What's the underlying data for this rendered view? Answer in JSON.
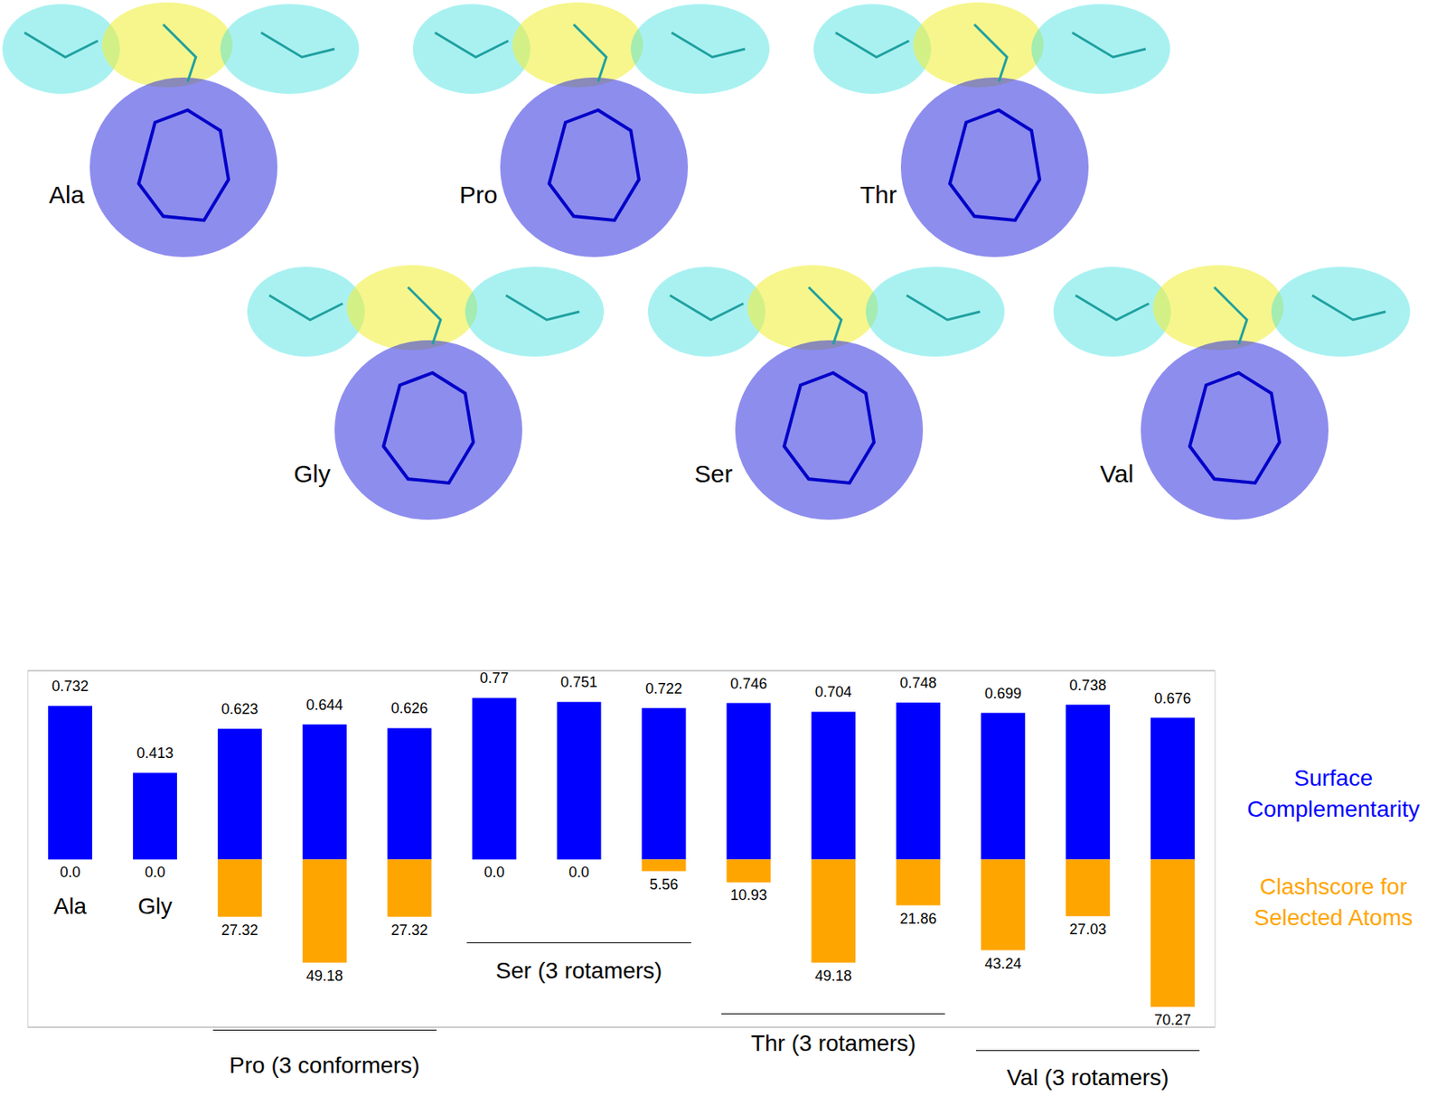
{
  "panel_labels": [
    "Ala",
    "Pro",
    "Thr",
    "Gly",
    "Ser",
    "Val"
  ],
  "chart_data": {
    "type": "bar",
    "categories": [
      "Ala",
      "Gly",
      null,
      null,
      null,
      null,
      null,
      null,
      null,
      null,
      null,
      null,
      null,
      null
    ],
    "groups": [
      {
        "label": "Pro (3 conformers)",
        "first": 2,
        "last": 4
      },
      {
        "label": "Ser (3 rotamers)",
        "first": 5,
        "last": 7
      },
      {
        "label": "Thr (3 rotamers)",
        "first": 8,
        "last": 10
      },
      {
        "label": "Val (3 rotamers)",
        "first": 11,
        "last": 13
      }
    ],
    "series": [
      {
        "name": "Surface Complementarity",
        "color": "#0000ff",
        "values": [
          0.732,
          0.413,
          0.623,
          0.644,
          0.626,
          0.77,
          0.751,
          0.722,
          0.746,
          0.704,
          0.748,
          0.699,
          0.738,
          0.676
        ]
      },
      {
        "name": "Clashscore for Selected Atoms",
        "color": "#ffa500",
        "axis": "y2",
        "values": [
          0,
          0,
          27.32,
          49.18,
          27.32,
          0,
          0,
          5.56,
          10.93,
          49.18,
          21.86,
          43.24,
          27.03,
          70.27
        ],
        "value_labels": [
          "0.0",
          "0.0",
          "27.32",
          "49.18",
          "27.32",
          "0.0",
          "0.0",
          "5.56",
          "10.93",
          "49.18",
          "21.86",
          "43.24",
          "27.03",
          "70.27"
        ]
      }
    ],
    "ylim": [
      -0.8,
      0.9
    ],
    "yticks": [
      0
    ],
    "y2lim": [
      -90,
      80
    ],
    "y2ticks": [
      0
    ],
    "grid": true,
    "data_labels": true,
    "tick_labels": false,
    "legend": "right"
  }
}
